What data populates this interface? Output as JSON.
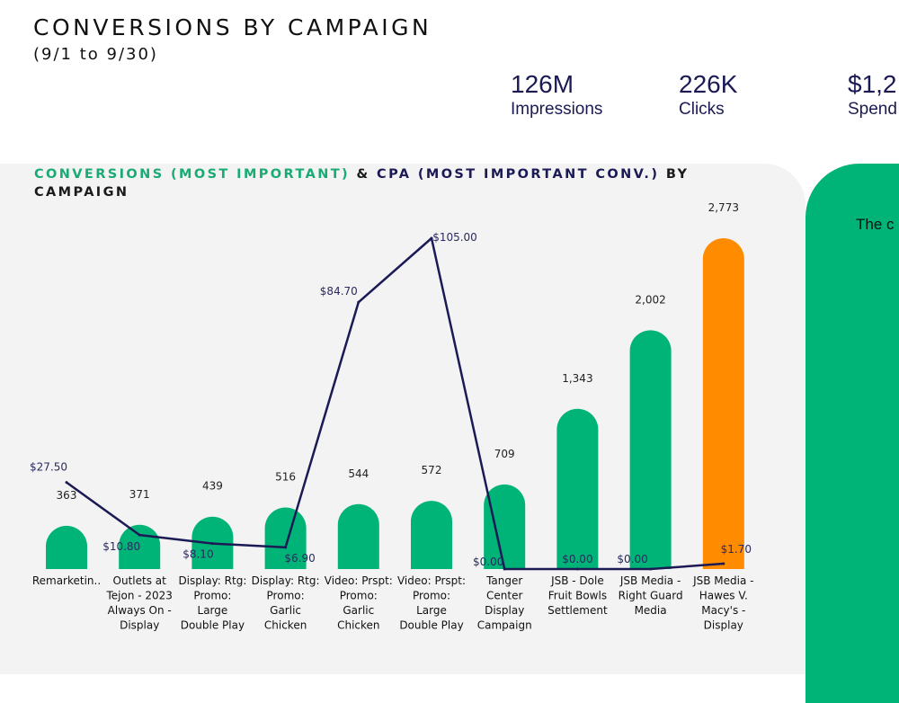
{
  "header": {
    "title": "CONVERSIONS BY CAMPAIGN",
    "subtitle": "(9/1 to 9/30)"
  },
  "kpis": [
    {
      "value": "126M",
      "label": "Impressions"
    },
    {
      "value": "226K",
      "label": "Clicks"
    },
    {
      "value": "$1,2",
      "label": "Spend"
    }
  ],
  "side_card": {
    "text": "The c"
  },
  "colors": {
    "bar": "#00b377",
    "highlight": "#ff8c00",
    "line": "#1b1a55"
  },
  "chart_data": {
    "type": "bar",
    "title_parts": [
      "CONVERSIONS (MOST IMPORTANT)",
      " & ",
      "CPA (MOST IMPORTANT CONV.)",
      " BY CAMPAIGN"
    ],
    "categories": [
      [
        "Remarketin.."
      ],
      [
        "Outlets at",
        "Tejon - 2023",
        "Always On -",
        "Display"
      ],
      [
        "Display: Rtg:",
        "Promo:",
        "Large",
        "Double Play"
      ],
      [
        "Display: Rtg:",
        "Promo:",
        "Garlic",
        "Chicken"
      ],
      [
        "Video: Prspt:",
        "Promo:",
        "Garlic",
        "Chicken"
      ],
      [
        "Video: Prspt:",
        "Promo:",
        "Large",
        "Double Play"
      ],
      [
        "Tanger",
        "Center",
        "Display",
        "Campaign"
      ],
      [
        "JSB - Dole",
        "Fruit Bowls",
        "Settlement"
      ],
      [
        "JSB Media -",
        "Right Guard",
        "Media"
      ],
      [
        "JSB Media -",
        "Hawes V.",
        "Macy's -",
        "Display"
      ]
    ],
    "series": [
      {
        "name": "Conversions (Most Important)",
        "type": "bar",
        "values": [
          363,
          371,
          439,
          516,
          544,
          572,
          709,
          1343,
          2002,
          2773
        ],
        "labels": [
          "363",
          "371",
          "439",
          "516",
          "544",
          "572",
          "709",
          "1,343",
          "2,002",
          "2,773"
        ]
      },
      {
        "name": "CPA (Most Important Conv.)",
        "type": "line",
        "values": [
          27.5,
          10.8,
          8.1,
          6.9,
          84.7,
          105.0,
          0.0,
          0.0,
          0.0,
          1.7
        ],
        "labels": [
          "$27.50",
          "$10.80",
          "$8.10",
          "$6.90",
          "$84.70",
          "$105.00",
          "$0.00",
          "$0.00",
          "$0.00",
          "$1.70"
        ]
      }
    ],
    "highlight_index": 9,
    "bar_ylim": [
      0,
      2773
    ],
    "line_ylim": [
      0,
      105
    ]
  }
}
